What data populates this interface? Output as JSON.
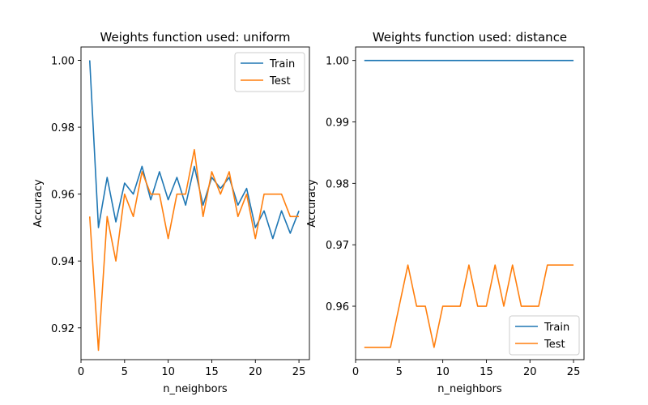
{
  "chart_data": [
    {
      "type": "line",
      "title": "Weights function used: uniform",
      "xlabel": "n_neighbors",
      "ylabel": "Accuracy",
      "xlim": [
        0,
        26.2
      ],
      "ylim": [
        0.9105,
        1.004
      ],
      "xticks": [
        0,
        5,
        10,
        15,
        20,
        25
      ],
      "yticks": [
        0.92,
        0.94,
        0.96,
        0.98,
        1.0
      ],
      "ytick_labels": [
        "0.92",
        "0.94",
        "0.96",
        "0.98",
        "1.00"
      ],
      "grid": false,
      "legend_position": "top-right",
      "x": [
        1,
        2,
        3,
        4,
        5,
        6,
        7,
        8,
        9,
        10,
        11,
        12,
        13,
        14,
        15,
        16,
        17,
        18,
        19,
        20,
        21,
        22,
        23,
        24,
        25
      ],
      "series": [
        {
          "name": "Train",
          "color": "#1f77b4",
          "values": [
            1.0,
            0.95,
            0.965,
            0.9517,
            0.9633,
            0.96,
            0.9683,
            0.9583,
            0.9667,
            0.9583,
            0.965,
            0.9567,
            0.9683,
            0.9567,
            0.965,
            0.9617,
            0.965,
            0.9567,
            0.9617,
            0.95,
            0.955,
            0.9467,
            0.955,
            0.9483,
            0.955
          ]
        },
        {
          "name": "Test",
          "color": "#ff7f0e",
          "values": [
            0.9533,
            0.9133,
            0.9533,
            0.94,
            0.96,
            0.9533,
            0.9667,
            0.96,
            0.96,
            0.9467,
            0.96,
            0.96,
            0.9733,
            0.9533,
            0.9667,
            0.96,
            0.9667,
            0.9533,
            0.96,
            0.9467,
            0.96,
            0.96,
            0.96,
            0.9533,
            0.9533
          ]
        }
      ]
    },
    {
      "type": "line",
      "title": "Weights function used: distance",
      "xlabel": "n_neighbors",
      "ylabel": "Accuracy",
      "xlim": [
        0,
        26.2
      ],
      "ylim": [
        0.9513,
        1.0022
      ],
      "xticks": [
        0,
        5,
        10,
        15,
        20,
        25
      ],
      "yticks": [
        0.96,
        0.97,
        0.98,
        0.99,
        1.0
      ],
      "ytick_labels": [
        "0.96",
        "0.97",
        "0.98",
        "0.99",
        "1.00"
      ],
      "grid": false,
      "legend_position": "bottom-right",
      "x": [
        1,
        2,
        3,
        4,
        5,
        6,
        7,
        8,
        9,
        10,
        11,
        12,
        13,
        14,
        15,
        16,
        17,
        18,
        19,
        20,
        21,
        22,
        23,
        24,
        25
      ],
      "series": [
        {
          "name": "Train",
          "color": "#1f77b4",
          "values": [
            1.0,
            1.0,
            1.0,
            1.0,
            1.0,
            1.0,
            1.0,
            1.0,
            1.0,
            1.0,
            1.0,
            1.0,
            1.0,
            1.0,
            1.0,
            1.0,
            1.0,
            1.0,
            1.0,
            1.0,
            1.0,
            1.0,
            1.0,
            1.0,
            1.0
          ]
        },
        {
          "name": "Test",
          "color": "#ff7f0e",
          "values": [
            0.9533,
            0.9533,
            0.9533,
            0.9533,
            0.96,
            0.9667,
            0.96,
            0.96,
            0.9533,
            0.96,
            0.96,
            0.96,
            0.9667,
            0.96,
            0.96,
            0.9667,
            0.96,
            0.9667,
            0.96,
            0.96,
            0.96,
            0.9667,
            0.9667,
            0.9667,
            0.9667
          ]
        }
      ]
    }
  ]
}
